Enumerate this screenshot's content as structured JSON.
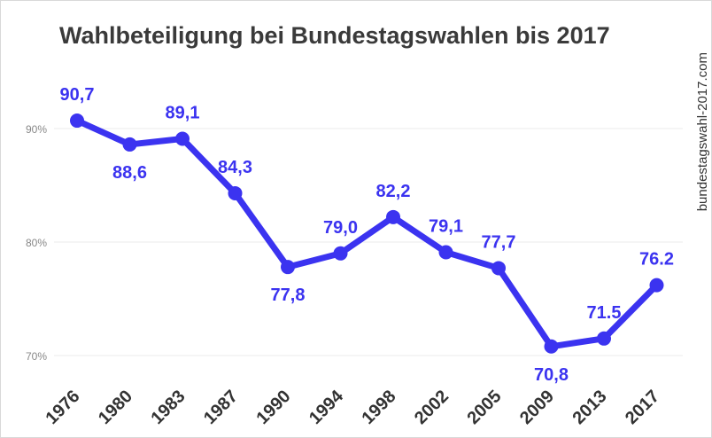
{
  "chart_data": {
    "type": "line",
    "title": "Wahlbeteiligung bei Bundestagswahlen bis 2017",
    "source": "bundestagswahl-2017.com",
    "xlabel": "",
    "ylabel": "",
    "categories": [
      "1976",
      "1980",
      "1983",
      "1987",
      "1990",
      "1994",
      "1998",
      "2002",
      "2005",
      "2009",
      "2013",
      "2017"
    ],
    "series": [
      {
        "values": [
          90.7,
          88.6,
          89.1,
          84.3,
          77.8,
          79.0,
          82.2,
          79.1,
          77.7,
          70.8,
          71.5,
          76.2
        ],
        "labels": [
          "90,7",
          "88,6",
          "89,1",
          "84,3",
          "77,8",
          "79,0",
          "82,2",
          "79,1",
          "77,7",
          "70,8",
          "71.5",
          "76.2"
        ],
        "color": "#3b33f0"
      }
    ],
    "ylim": [
      70,
      90
    ],
    "yticks": [
      {
        "value": 90,
        "label": "90%"
      },
      {
        "value": 80,
        "label": "80%"
      },
      {
        "value": 70,
        "label": "70%"
      }
    ],
    "grid": true,
    "legend": "none",
    "gridColor": "#ebebeb"
  }
}
